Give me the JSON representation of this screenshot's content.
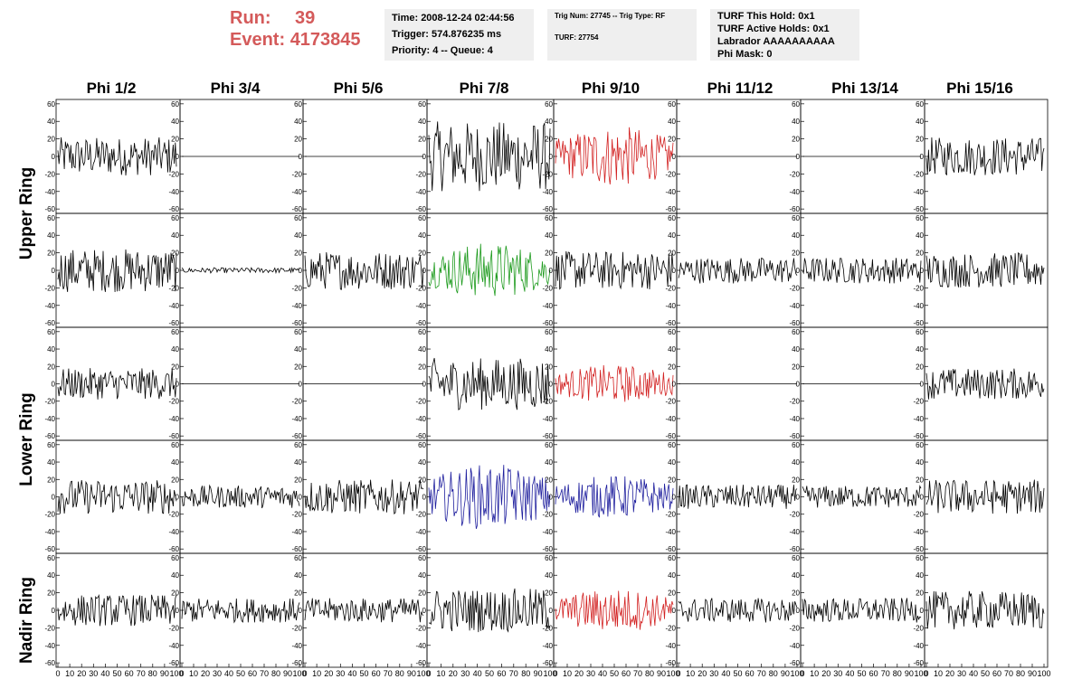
{
  "run": {
    "run_label": "Run:",
    "run_value": "39",
    "event_label": "Event:",
    "event_value": "4173845"
  },
  "info_box_1": {
    "time": "Time: 2008-12-24 02:44:56",
    "trigger": "Trigger: 574.876235 ms",
    "priority": "Priority: 4 -- Queue: 4"
  },
  "info_box_2": {
    "trig": "Trig Num: 27745 -- Trig Type: RF",
    "turf": "TURF: 27754"
  },
  "info_box_3": {
    "hold": "TURF This Hold: 0x1",
    "active": "TURF Active Holds: 0x1",
    "labrador": "Labrador AAAAAAAAAA",
    "mask": "Phi Mask: 0"
  },
  "columns": [
    "Phi 1/2",
    "Phi 3/4",
    "Phi 5/6",
    "Phi 7/8",
    "Phi 9/10",
    "Phi 11/12",
    "Phi 13/14",
    "Phi 15/16"
  ],
  "rings": [
    "Upper Ring",
    "Lower Ring",
    "Nadir Ring"
  ],
  "colors": {
    "default": "#000000",
    "red": "#d22020",
    "green": "#1c9a1c",
    "blue": "#1f1f9e",
    "title": "#d45a5a"
  },
  "chart_data": {
    "type": "line",
    "description_rows": 5,
    "xlim": [
      0,
      100
    ],
    "ylim": [
      -65,
      65
    ],
    "xticks": [
      "0",
      "10",
      "20",
      "30",
      "40",
      "50",
      "60",
      "70",
      "80",
      "90",
      "100"
    ],
    "yticks": [
      "-60",
      "-40",
      "-20",
      "0",
      "20",
      "40",
      "60"
    ],
    "panels": [
      [
        {
          "amp": 22,
          "color": "default"
        },
        {
          "amp": 0,
          "color": "default"
        },
        {
          "amp": 0,
          "color": "default"
        },
        {
          "amp": 40,
          "color": "default"
        },
        {
          "amp": 35,
          "color": "red"
        },
        {
          "amp": 0,
          "color": "default"
        },
        {
          "amp": 0,
          "color": "default"
        },
        {
          "amp": 22,
          "color": "default"
        }
      ],
      [
        {
          "amp": 25,
          "color": "default"
        },
        {
          "amp": 3,
          "color": "default"
        },
        {
          "amp": 22,
          "color": "default"
        },
        {
          "amp": 32,
          "color": "green"
        },
        {
          "amp": 22,
          "color": "default"
        },
        {
          "amp": 15,
          "color": "default"
        },
        {
          "amp": 15,
          "color": "default"
        },
        {
          "amp": 20,
          "color": "default"
        }
      ],
      [
        {
          "amp": 18,
          "color": "default"
        },
        {
          "amp": 0,
          "color": "default"
        },
        {
          "amp": 0,
          "color": "default"
        },
        {
          "amp": 30,
          "color": "default"
        },
        {
          "amp": 22,
          "color": "red"
        },
        {
          "amp": 0,
          "color": "default"
        },
        {
          "amp": 0,
          "color": "default"
        },
        {
          "amp": 18,
          "color": "default"
        }
      ],
      [
        {
          "amp": 20,
          "color": "default"
        },
        {
          "amp": 13,
          "color": "default"
        },
        {
          "amp": 20,
          "color": "default"
        },
        {
          "amp": 38,
          "color": "blue"
        },
        {
          "amp": 25,
          "color": "blue"
        },
        {
          "amp": 14,
          "color": "default"
        },
        {
          "amp": 13,
          "color": "default"
        },
        {
          "amp": 20,
          "color": "default"
        }
      ],
      [
        {
          "amp": 18,
          "color": "default"
        },
        {
          "amp": 14,
          "color": "default"
        },
        {
          "amp": 14,
          "color": "default"
        },
        {
          "amp": 25,
          "color": "default"
        },
        {
          "amp": 25,
          "color": "red"
        },
        {
          "amp": 14,
          "color": "default"
        },
        {
          "amp": 14,
          "color": "default"
        },
        {
          "amp": 22,
          "color": "default"
        }
      ]
    ]
  }
}
